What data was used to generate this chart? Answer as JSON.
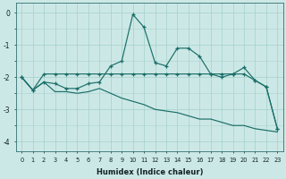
{
  "xlabel": "Humidex (Indice chaleur)",
  "bg_color": "#cce8e6",
  "grid_color": "#aad4d0",
  "line_color": "#1a6e68",
  "xlim": [
    -0.5,
    23.5
  ],
  "ylim": [
    -4.3,
    0.3
  ],
  "yticks": [
    0,
    -1,
    -2,
    -3,
    -4
  ],
  "xticks": [
    0,
    1,
    2,
    3,
    4,
    5,
    6,
    7,
    8,
    9,
    10,
    11,
    12,
    13,
    14,
    15,
    16,
    17,
    18,
    19,
    20,
    21,
    22,
    23
  ],
  "line1_x": [
    0,
    1,
    2,
    3,
    4,
    5,
    6,
    7,
    8,
    9,
    10,
    11,
    12,
    13,
    14,
    15,
    16,
    17,
    18,
    19,
    20,
    21,
    22,
    23
  ],
  "line1_y": [
    -2.0,
    -2.4,
    -2.15,
    -2.2,
    -2.35,
    -2.35,
    -2.2,
    -2.15,
    -1.65,
    -1.5,
    -0.05,
    -0.45,
    -1.55,
    -1.65,
    -1.1,
    -1.1,
    -1.35,
    -1.9,
    -2.0,
    -1.9,
    -1.7,
    -2.1,
    -2.3,
    -3.6
  ],
  "line2_x": [
    0,
    1,
    2,
    3,
    4,
    5,
    6,
    7,
    8,
    9,
    10,
    11,
    12,
    13,
    14,
    15,
    16,
    17,
    18,
    19,
    20,
    21,
    22,
    23
  ],
  "line2_y": [
    -2.0,
    -2.4,
    -1.9,
    -1.9,
    -1.9,
    -1.9,
    -1.9,
    -1.9,
    -1.9,
    -1.9,
    -1.9,
    -1.9,
    -1.9,
    -1.9,
    -1.9,
    -1.9,
    -1.9,
    -1.9,
    -1.9,
    -1.9,
    -1.9,
    -2.1,
    -2.3,
    -3.6
  ],
  "line3_x": [
    0,
    1,
    2,
    3,
    4,
    5,
    6,
    7,
    8,
    9,
    10,
    11,
    12,
    13,
    14,
    15,
    16,
    17,
    18,
    19,
    20,
    21,
    22,
    23
  ],
  "line3_y": [
    -2.0,
    -2.4,
    -2.15,
    -2.45,
    -2.45,
    -2.5,
    -2.45,
    -2.35,
    -2.5,
    -2.65,
    -2.75,
    -2.85,
    -3.0,
    -3.05,
    -3.1,
    -3.2,
    -3.3,
    -3.3,
    -3.4,
    -3.5,
    -3.5,
    -3.6,
    -3.65,
    -3.7
  ]
}
